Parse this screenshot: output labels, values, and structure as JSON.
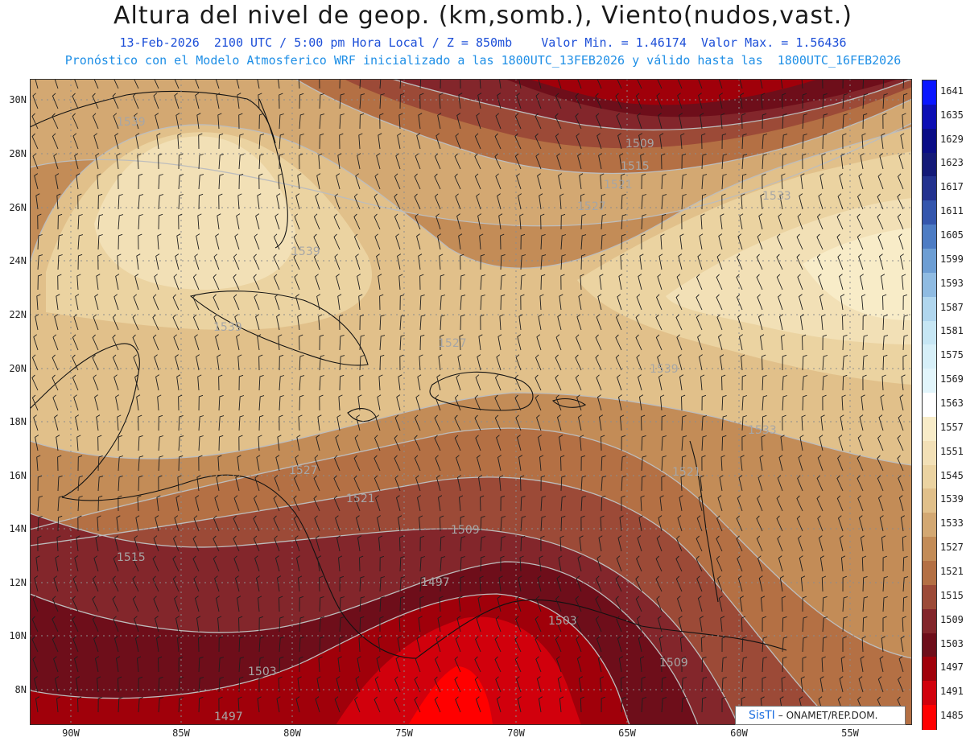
{
  "header": {
    "title": "Altura del nivel de geop. (km,somb.), Viento(nudos,vast.)",
    "subtitle1": "13-Feb-2026  2100 UTC / 5:00 pm Hora Local / Z = 850mb    Valor Min. = 1.46174  Valor Max. = 1.56436",
    "subtitle2": "Pronóstico con el Modelo Atmosferico WRF inicializado a las 1800UTC_13FEB2026 y válido hasta las  1800UTC_16FEB2026"
  },
  "axes": {
    "lat_labels": [
      "30N",
      "28N",
      "26N",
      "24N",
      "22N",
      "20N",
      "18N",
      "16N",
      "14N",
      "12N",
      "10N",
      "8N"
    ],
    "lon_labels": [
      "90W",
      "85W",
      "80W",
      "75W",
      "70W",
      "65W",
      "60W",
      "55W"
    ]
  },
  "colorbar": {
    "labels": [
      "1641",
      "1635",
      "1629",
      "1623",
      "1617",
      "1611",
      "1605",
      "1599",
      "1593",
      "1587",
      "1581",
      "1575",
      "1569",
      "1563",
      "1557",
      "1551",
      "1545",
      "1539",
      "1533",
      "1527",
      "1521",
      "1515",
      "1509",
      "1503",
      "1497",
      "1491",
      "1485"
    ],
    "colors": [
      "#0a16ff",
      "#0d0fb4",
      "#0a0d86",
      "#141a78",
      "#23328f",
      "#3456ad",
      "#4d7cc4",
      "#6d9ed4",
      "#8fbbe2",
      "#b0d6ee",
      "#c6e6f4",
      "#d6eff8",
      "#e2f5fb",
      "#ffffff",
      "#f8ecc8",
      "#f2e0b6",
      "#ebd3a1",
      "#e1c08a",
      "#d3a872",
      "#c38c57",
      "#b47044",
      "#9c4a37",
      "#83262b",
      "#6e0e1a",
      "#a0000a",
      "#d1000c",
      "#ff0000"
    ]
  },
  "contour_labels": [
    "1539",
    "1509",
    "1515",
    "1521",
    "1527",
    "1533",
    "1539",
    "1539",
    "1527",
    "1539",
    "1533",
    "1527",
    "1521",
    "1521",
    "1509",
    "1515",
    "1497",
    "1503",
    "1503",
    "1509",
    "1497"
  ],
  "credit": {
    "part1": "SisTI",
    "part2": "– ONAMET/REP.DOM."
  }
}
